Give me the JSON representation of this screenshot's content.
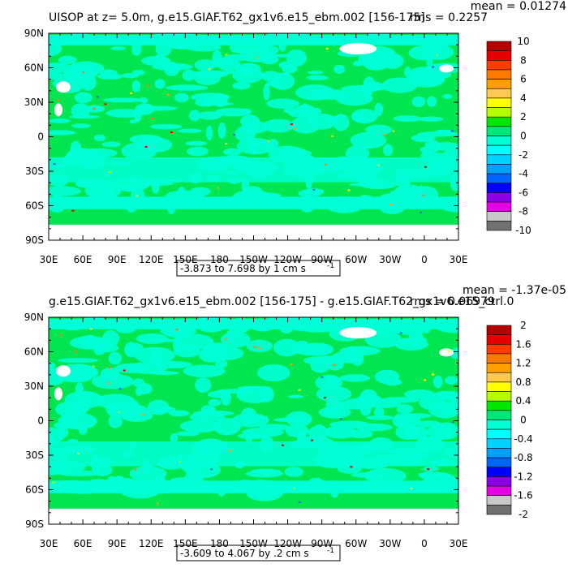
{
  "chart_data": [
    {
      "type": "heatmap",
      "title": "UISOP at z=   5.0m, g.e15.GIAF.T62_gx1v6.e15_ebm.002 [156-175]",
      "mean_text": "mean = 0.01274",
      "rms_text": "rms = 0.2257",
      "range_text": "-3.873 to 7.698 by 1 cm s",
      "range_sup": "-1",
      "x_ticks": [
        "30E",
        "60E",
        "90E",
        "120E",
        "150E",
        "180",
        "150W",
        "120W",
        "90W",
        "60W",
        "30W",
        "0",
        "30E"
      ],
      "y_ticks": [
        "90N",
        "60N",
        "30N",
        "0",
        "30S",
        "60S",
        "90S"
      ],
      "legend_levels": [
        "10",
        "8",
        "6",
        "4",
        "2",
        "0",
        "-2",
        "-4",
        "-6",
        "-8",
        "-10"
      ],
      "legend_colors": [
        "#b40000",
        "#e60000",
        "#ff3c00",
        "#ff7800",
        "#ffa000",
        "#ffc850",
        "#ffff00",
        "#b4ff00",
        "#00e600",
        "#00e678",
        "#00ffd2",
        "#00ffff",
        "#00d2ff",
        "#00a0ff",
        "#0064ff",
        "#0000ff",
        "#8c00e6",
        "#e600e6",
        "#c8c8c8",
        "#707070"
      ],
      "dominant_fill": "#00e650",
      "secondary_fill": "#00ffd7",
      "grid": false,
      "legend": "right"
    },
    {
      "type": "heatmap",
      "title": "g.e15.GIAF.T62_gx1v6.e15_ebm.002 [156-175] - g.e15.GIAF.T62_gx1v6.e15_ctrl.0",
      "mean_text": "mean = -1.37e-05",
      "rms_text": "rms = 0.06979",
      "range_text": "-3.609 to 4.067 by .2 cm s",
      "range_sup": "-1",
      "x_ticks": [
        "30E",
        "60E",
        "90E",
        "120E",
        "150E",
        "180",
        "150W",
        "120W",
        "90W",
        "60W",
        "30W",
        "0",
        "30E"
      ],
      "y_ticks": [
        "90N",
        "60N",
        "30N",
        "0",
        "30S",
        "60S",
        "90S"
      ],
      "legend_levels": [
        "2",
        "1.6",
        "1.2",
        "0.8",
        "0.4",
        "0",
        "-0.4",
        "-0.8",
        "-1.2",
        "-1.6",
        "-2"
      ],
      "legend_colors": [
        "#b40000",
        "#e60000",
        "#ff3c00",
        "#ff7800",
        "#ffa000",
        "#ffc850",
        "#ffff00",
        "#b4ff00",
        "#00e600",
        "#00e678",
        "#00ffd2",
        "#00ffff",
        "#00d2ff",
        "#00a0ff",
        "#0064ff",
        "#0000ff",
        "#8c00e6",
        "#e600e6",
        "#c8c8c8",
        "#707070"
      ],
      "dominant_fill": "#00e650",
      "secondary_fill": "#00ffd7",
      "grid": false,
      "legend": "right"
    }
  ]
}
